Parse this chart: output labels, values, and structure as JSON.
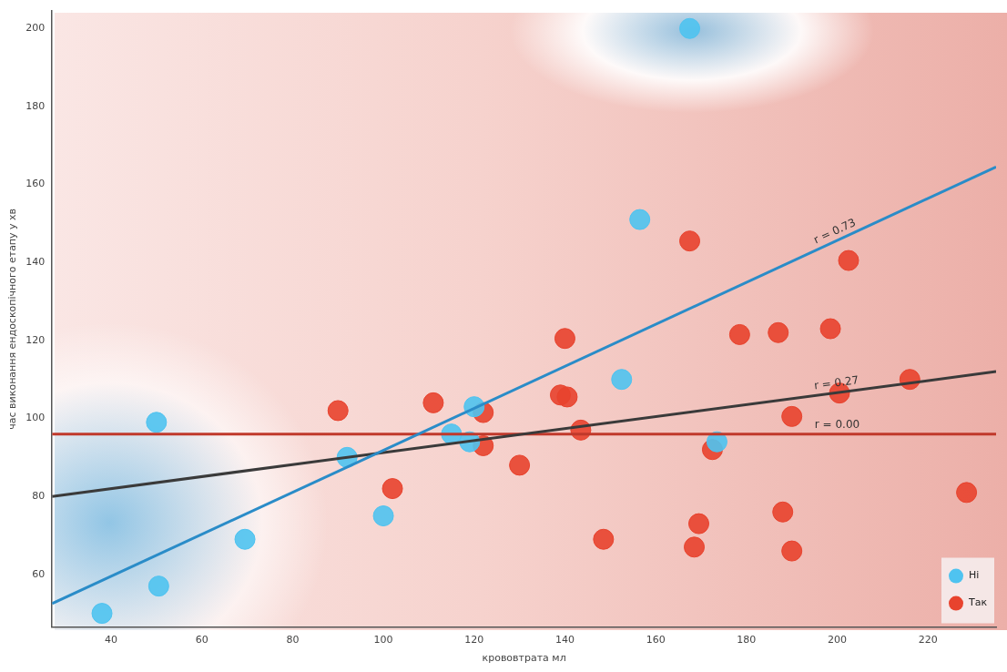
{
  "chart_data": {
    "type": "scatter",
    "xlabel": "крововтрата мл",
    "ylabel": "час виконання ендоскопічного етапу у хв",
    "xlim": [
      27,
      235
    ],
    "ylim": [
      46.5,
      204.5
    ],
    "xticks": [
      40,
      60,
      80,
      100,
      120,
      140,
      160,
      180,
      200,
      220
    ],
    "yticks": [
      60,
      80,
      100,
      120,
      140,
      160,
      180,
      200
    ],
    "grid": false,
    "legend": "bottom right",
    "marker": "circle",
    "series": [
      {
        "name": "Ні",
        "color": "#4fc3f0",
        "x": [
          38,
          50,
          50.5,
          69.5,
          92,
          100,
          115,
          119,
          120,
          152.5,
          156.5,
          167.5,
          173.5
        ],
        "values": [
          50,
          99,
          57,
          69,
          90,
          75,
          96,
          94,
          103,
          110,
          151,
          200,
          94
        ]
      },
      {
        "name": "Так",
        "color": "#e8432e",
        "x": [
          90,
          102,
          111,
          122,
          122,
          130,
          140,
          139,
          140.5,
          143.5,
          148.5,
          167.5,
          169.5,
          168.5,
          172.5,
          178.5,
          187,
          188,
          190,
          190,
          198.5,
          200.5,
          202.5,
          216,
          228.5
        ],
        "values": [
          102,
          82,
          104,
          101.5,
          93,
          88,
          120.5,
          106,
          105.5,
          97,
          69,
          145.5,
          73,
          67,
          92,
          121.5,
          122,
          76,
          66,
          100.5,
          123,
          106.5,
          140.5,
          110,
          81
        ]
      },
      {
        "type": "line",
        "marker": "none",
        "color": "#2a8cc8",
        "x": [
          27,
          235
        ],
        "values": [
          52.5,
          164.5
        ]
      },
      {
        "type": "line",
        "marker": "none",
        "color": "#3a3a3a",
        "x": [
          27,
          235
        ],
        "values": [
          80,
          112
        ]
      },
      {
        "type": "line",
        "marker": "none",
        "color": "#c0392b",
        "x": [
          27,
          235
        ],
        "values": [
          96,
          96
        ]
      }
    ],
    "annotations": [
      "r = 0.73",
      "r = 0.27",
      "r = 0.00"
    ]
  }
}
